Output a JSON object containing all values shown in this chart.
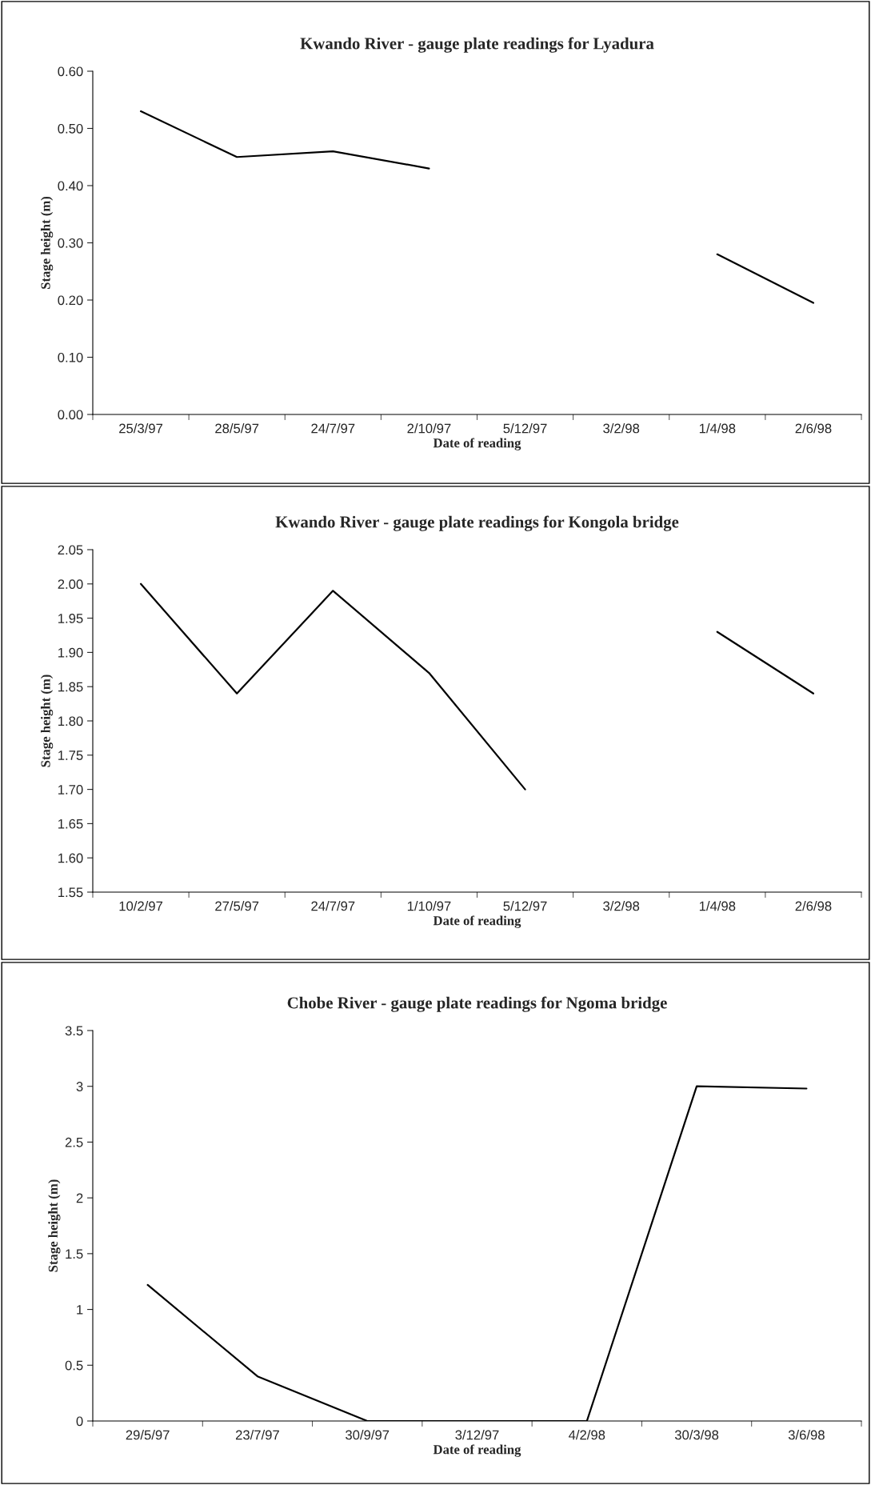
{
  "chart_data": [
    {
      "type": "line",
      "title": "Kwando River - gauge plate readings for Lyadura",
      "xlabel": "Date of reading",
      "ylabel": "Stage height (m)",
      "categories": [
        "25/3/97",
        "28/5/97",
        "24/7/97",
        "2/10/97",
        "5/12/97",
        "3/2/98",
        "1/4/98",
        "2/6/98"
      ],
      "series": [
        {
          "color": "#000000",
          "values": [
            0.53,
            0.45,
            0.46,
            0.43,
            null,
            null,
            0.28,
            0.195
          ]
        }
      ],
      "ylim": [
        0,
        0.6
      ],
      "yticks": [
        {
          "value": 0,
          "label": "0.00"
        },
        {
          "value": 0.1,
          "label": "0.10"
        },
        {
          "value": 0.2,
          "label": "0.20"
        },
        {
          "value": 0.3,
          "label": "0.30"
        },
        {
          "value": 0.4,
          "label": "0.40"
        },
        {
          "value": 0.5,
          "label": "0.50"
        },
        {
          "value": 0.6,
          "label": "0.60"
        }
      ]
    },
    {
      "type": "line",
      "title": "Kwando River - gauge plate readings for Kongola bridge",
      "xlabel": "Date of reading",
      "ylabel": "Stage height (m)",
      "categories": [
        "10/2/97",
        "27/5/97",
        "24/7/97",
        "1/10/97",
        "5/12/97",
        "3/2/98",
        "1/4/98",
        "2/6/98"
      ],
      "series": [
        {
          "color": "#000000",
          "values": [
            2.0,
            1.84,
            1.99,
            1.87,
            1.7,
            null,
            1.93,
            1.84
          ]
        }
      ],
      "ylim": [
        1.55,
        2.05
      ],
      "yticks": [
        {
          "value": 1.55,
          "label": "1.55"
        },
        {
          "value": 1.6,
          "label": "1.60"
        },
        {
          "value": 1.65,
          "label": "1.65"
        },
        {
          "value": 1.7,
          "label": "1.70"
        },
        {
          "value": 1.75,
          "label": "1.75"
        },
        {
          "value": 1.8,
          "label": "1.80"
        },
        {
          "value": 1.85,
          "label": "1.85"
        },
        {
          "value": 1.9,
          "label": "1.90"
        },
        {
          "value": 1.95,
          "label": "1.95"
        },
        {
          "value": 2.0,
          "label": "2.00"
        },
        {
          "value": 2.05,
          "label": "2.05"
        }
      ]
    },
    {
      "type": "line",
      "title": "Chobe River - gauge plate readings for Ngoma bridge",
      "xlabel": "Date of reading",
      "ylabel": "Stage height (m)",
      "categories": [
        "29/5/97",
        "23/7/97",
        "30/9/97",
        "3/12/97",
        "4/2/98",
        "30/3/98",
        "3/6/98"
      ],
      "series": [
        {
          "color": "#000000",
          "values": [
            1.22,
            0.4,
            0,
            0,
            0,
            3.0,
            2.98
          ]
        }
      ],
      "ylim": [
        0,
        3.5
      ],
      "yticks": [
        0,
        0.5,
        1,
        1.5,
        2,
        2.5,
        3,
        3.5
      ]
    }
  ]
}
